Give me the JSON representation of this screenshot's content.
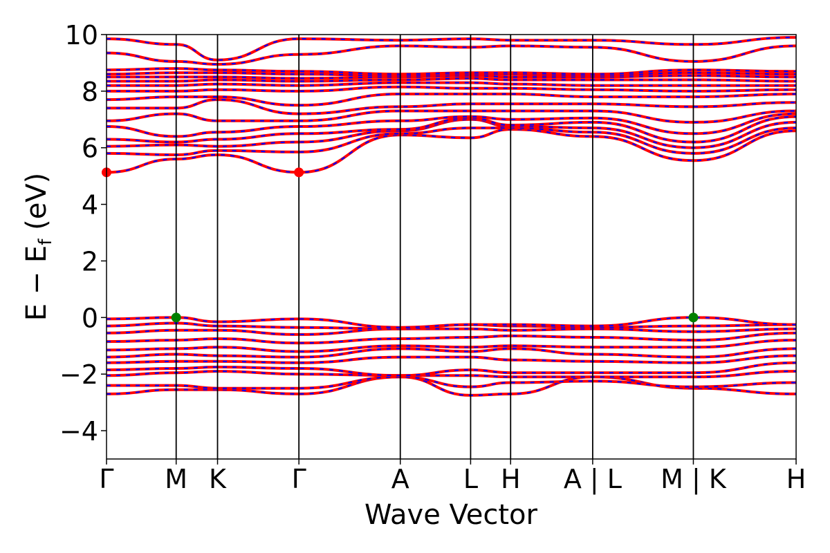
{
  "chart_data": {
    "type": "line",
    "title": "",
    "xlabel": "Wave Vector",
    "ylabel_parts": [
      "E − E",
      "f",
      " (eV)"
    ],
    "ylim": [
      -5,
      10
    ],
    "yticks": [
      -4,
      -2,
      0,
      2,
      4,
      6,
      8,
      10
    ],
    "ytick_labels": [
      "−4",
      "−2",
      "0",
      "2",
      "4",
      "6",
      "8",
      "10"
    ],
    "xlim": [
      0,
      1
    ],
    "kpoints": [
      {
        "label": "Γ",
        "x": 0.0
      },
      {
        "label": "M",
        "x": 0.101
      },
      {
        "label": "K",
        "x": 0.161
      },
      {
        "label": "Γ",
        "x": 0.279
      },
      {
        "label": "A",
        "x": 0.426
      },
      {
        "label": "L",
        "x": 0.528
      },
      {
        "label": "H",
        "x": 0.586
      },
      {
        "label": "A | L",
        "x": 0.705
      },
      {
        "label": "M | K",
        "x": 0.851
      },
      {
        "label": "H",
        "x": 1.0
      }
    ],
    "series_style": {
      "primary_color": "#ff0000",
      "secondary_color": "#0000ff"
    },
    "cbm_points": [
      {
        "x": 0.0,
        "y": 5.13
      },
      {
        "x": 0.279,
        "y": 5.13
      }
    ],
    "vbm_points": [
      {
        "x": 0.101,
        "y": 0.0
      },
      {
        "x": 0.851,
        "y": 0.0
      }
    ],
    "cbm_color": "#ff0000",
    "vbm_color": "#008000",
    "bands": [
      {
        "k": [
          0,
          0.101,
          0.161,
          0.279,
          0.426,
          0.528,
          0.586,
          0.705,
          0.851,
          1.0
        ],
        "e": [
          -2.7,
          -2.55,
          -2.55,
          -2.7,
          -2.1,
          -2.75,
          -2.7,
          -2.1,
          -2.5,
          -2.7
        ]
      },
      {
        "k": [
          0,
          0.101,
          0.161,
          0.279,
          0.426,
          0.528,
          0.586,
          0.705,
          0.851,
          1.0
        ],
        "e": [
          -2.4,
          -2.4,
          -2.5,
          -2.5,
          -2.1,
          -2.45,
          -2.3,
          -2.25,
          -2.45,
          -2.3
        ]
      },
      {
        "k": [
          0,
          0.101,
          0.161,
          0.279,
          0.426,
          0.528,
          0.586,
          0.705,
          0.851,
          1.0
        ],
        "e": [
          -2.05,
          -1.95,
          -1.9,
          -2.0,
          -2.05,
          -2.05,
          -2.1,
          -2.1,
          -2.1,
          -1.9
        ]
      },
      {
        "k": [
          0,
          0.101,
          0.161,
          0.279,
          0.426,
          0.528,
          0.586,
          0.705,
          0.851,
          1.0
        ],
        "e": [
          -1.85,
          -1.8,
          -1.75,
          -1.8,
          -2.05,
          -1.85,
          -1.95,
          -1.95,
          -1.95,
          -1.6
        ]
      },
      {
        "k": [
          0,
          0.101,
          0.161,
          0.279,
          0.426,
          0.528,
          0.586,
          0.705,
          0.851,
          1.0
        ],
        "e": [
          -1.6,
          -1.55,
          -1.55,
          -1.6,
          -1.4,
          -1.4,
          -1.5,
          -1.55,
          -1.6,
          -1.35
        ]
      },
      {
        "k": [
          0,
          0.101,
          0.161,
          0.279,
          0.426,
          0.528,
          0.586,
          0.705,
          0.851,
          1.0
        ],
        "e": [
          -1.4,
          -1.3,
          -1.35,
          -1.4,
          -1.1,
          -1.2,
          -1.1,
          -1.3,
          -1.4,
          -1.1
        ]
      },
      {
        "k": [
          0,
          0.101,
          0.161,
          0.279,
          0.426,
          0.528,
          0.586,
          0.705,
          0.851,
          1.0
        ],
        "e": [
          -1.15,
          -1.1,
          -1.05,
          -1.2,
          -1.0,
          -1.05,
          -1.0,
          -1.05,
          -1.05,
          -0.8
        ]
      },
      {
        "k": [
          0,
          0.101,
          0.161,
          0.279,
          0.426,
          0.528,
          0.586,
          0.705,
          0.851,
          1.0
        ],
        "e": [
          -0.85,
          -0.8,
          -0.75,
          -0.9,
          -0.75,
          -0.7,
          -0.65,
          -0.7,
          -0.8,
          -0.55
        ]
      },
      {
        "k": [
          0,
          0.101,
          0.161,
          0.279,
          0.426,
          0.528,
          0.586,
          0.705,
          0.851,
          1.0
        ],
        "e": [
          -0.55,
          -0.45,
          -0.45,
          -0.6,
          -0.4,
          -0.4,
          -0.45,
          -0.4,
          -0.5,
          -0.4
        ]
      },
      {
        "k": [
          0,
          0.101,
          0.161,
          0.279,
          0.426,
          0.528,
          0.586,
          0.705,
          0.851,
          1.0
        ],
        "e": [
          -0.3,
          -0.2,
          -0.3,
          -0.35,
          -0.4,
          -0.25,
          -0.3,
          -0.35,
          -0.3,
          -0.25
        ]
      },
      {
        "k": [
          0,
          0.101,
          0.161,
          0.279,
          0.426,
          0.528,
          0.586,
          0.705,
          0.851,
          1.0
        ],
        "e": [
          -0.05,
          0.0,
          -0.15,
          -0.05,
          -0.35,
          -0.25,
          -0.25,
          -0.3,
          0.0,
          -0.25
        ]
      },
      {
        "k": [
          0,
          0.101,
          0.161,
          0.279,
          0.426,
          0.528,
          0.586,
          0.705,
          0.851,
          1.0
        ],
        "e": [
          5.13,
          5.6,
          5.75,
          5.13,
          6.45,
          6.35,
          6.65,
          6.4,
          5.55,
          6.6
        ]
      },
      {
        "k": [
          0,
          0.101,
          0.161,
          0.279,
          0.426,
          0.528,
          0.586,
          0.705,
          0.851,
          1.0
        ],
        "e": [
          5.8,
          5.75,
          5.9,
          5.85,
          6.5,
          6.7,
          6.7,
          6.55,
          5.8,
          6.7
        ]
      },
      {
        "k": [
          0,
          0.101,
          0.161,
          0.279,
          0.426,
          0.528,
          0.586,
          0.705,
          0.851,
          1.0
        ],
        "e": [
          6.05,
          6.1,
          6.05,
          6.2,
          6.6,
          7.0,
          6.75,
          6.7,
          6.0,
          6.9
        ]
      },
      {
        "k": [
          0,
          0.101,
          0.161,
          0.279,
          0.426,
          0.528,
          0.586,
          0.705,
          0.851,
          1.0
        ],
        "e": [
          6.3,
          6.2,
          6.3,
          6.5,
          6.65,
          7.05,
          6.8,
          6.9,
          6.2,
          7.1
        ]
      },
      {
        "k": [
          0,
          0.101,
          0.161,
          0.279,
          0.426,
          0.528,
          0.586,
          0.705,
          0.851,
          1.0
        ],
        "e": [
          6.75,
          6.4,
          6.55,
          6.75,
          6.95,
          7.1,
          7.0,
          7.05,
          6.5,
          7.2
        ]
      },
      {
        "k": [
          0,
          0.101,
          0.161,
          0.279,
          0.426,
          0.528,
          0.586,
          0.705,
          0.851,
          1.0
        ],
        "e": [
          6.95,
          7.2,
          6.95,
          6.95,
          7.3,
          7.3,
          7.3,
          7.3,
          6.9,
          7.3
        ]
      },
      {
        "k": [
          0,
          0.101,
          0.161,
          0.279,
          0.426,
          0.528,
          0.586,
          0.705,
          0.851,
          1.0
        ],
        "e": [
          7.4,
          7.4,
          7.7,
          7.2,
          7.45,
          7.55,
          7.55,
          7.55,
          7.45,
          7.6
        ]
      },
      {
        "k": [
          0,
          0.101,
          0.161,
          0.279,
          0.426,
          0.528,
          0.586,
          0.705,
          0.851,
          1.0
        ],
        "e": [
          7.7,
          7.8,
          7.8,
          7.5,
          7.9,
          7.9,
          7.9,
          7.8,
          7.8,
          7.9
        ]
      },
      {
        "k": [
          0,
          0.101,
          0.161,
          0.279,
          0.426,
          0.528,
          0.586,
          0.705,
          0.851,
          1.0
        ],
        "e": [
          8.0,
          8.0,
          8.05,
          8.0,
          8.15,
          8.1,
          8.1,
          8.05,
          8.0,
          8.05
        ]
      },
      {
        "k": [
          0,
          0.101,
          0.161,
          0.279,
          0.426,
          0.528,
          0.586,
          0.705,
          0.851,
          1.0
        ],
        "e": [
          8.2,
          8.2,
          8.25,
          8.2,
          8.3,
          8.3,
          8.25,
          8.2,
          8.2,
          8.2
        ]
      },
      {
        "k": [
          0,
          0.101,
          0.161,
          0.279,
          0.426,
          0.528,
          0.586,
          0.705,
          0.851,
          1.0
        ],
        "e": [
          8.35,
          8.35,
          8.4,
          8.35,
          8.4,
          8.45,
          8.4,
          8.4,
          8.4,
          8.35
        ]
      },
      {
        "k": [
          0,
          0.101,
          0.161,
          0.279,
          0.426,
          0.528,
          0.586,
          0.705,
          0.851,
          1.0
        ],
        "e": [
          8.5,
          8.5,
          8.5,
          8.45,
          8.5,
          8.55,
          8.5,
          8.5,
          8.55,
          8.5
        ]
      },
      {
        "k": [
          0,
          0.101,
          0.161,
          0.279,
          0.426,
          0.528,
          0.586,
          0.705,
          0.851,
          1.0
        ],
        "e": [
          8.6,
          8.65,
          8.65,
          8.6,
          8.55,
          8.6,
          8.6,
          8.55,
          8.65,
          8.6
        ]
      },
      {
        "k": [
          0,
          0.101,
          0.161,
          0.279,
          0.426,
          0.528,
          0.586,
          0.705,
          0.851,
          1.0
        ],
        "e": [
          8.75,
          8.8,
          8.75,
          8.7,
          8.6,
          8.65,
          8.65,
          8.6,
          8.75,
          8.7
        ]
      },
      {
        "k": [
          0,
          0.101,
          0.161,
          0.279,
          0.426,
          0.528,
          0.586,
          0.705,
          0.851,
          1.0
        ],
        "e": [
          9.35,
          9.05,
          8.95,
          9.3,
          9.6,
          9.55,
          9.6,
          9.55,
          9.05,
          9.6
        ]
      },
      {
        "k": [
          0,
          0.101,
          0.161,
          0.279,
          0.426,
          0.528,
          0.586,
          0.705,
          0.851,
          1.0
        ],
        "e": [
          9.85,
          9.65,
          9.1,
          9.85,
          9.8,
          9.85,
          9.8,
          9.8,
          9.65,
          9.9
        ]
      }
    ]
  }
}
